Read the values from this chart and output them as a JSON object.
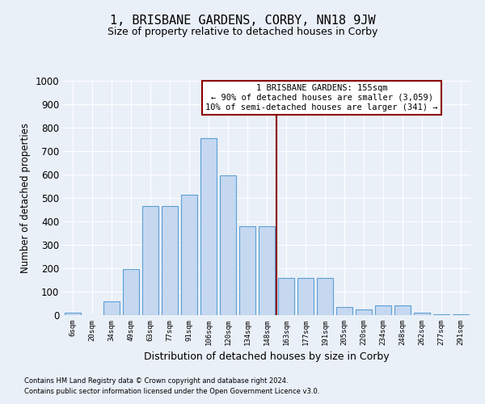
{
  "title": "1, BRISBANE GARDENS, CORBY, NN18 9JW",
  "subtitle": "Size of property relative to detached houses in Corby",
  "xlabel": "Distribution of detached houses by size in Corby",
  "ylabel": "Number of detached properties",
  "footnote1": "Contains HM Land Registry data © Crown copyright and database right 2024.",
  "footnote2": "Contains public sector information licensed under the Open Government Licence v3.0.",
  "categories": [
    "6sqm",
    "20sqm",
    "34sqm",
    "49sqm",
    "63sqm",
    "77sqm",
    "91sqm",
    "106sqm",
    "120sqm",
    "134sqm",
    "148sqm",
    "163sqm",
    "177sqm",
    "191sqm",
    "205sqm",
    "220sqm",
    "234sqm",
    "248sqm",
    "262sqm",
    "277sqm",
    "291sqm"
  ],
  "values": [
    10,
    0,
    60,
    195,
    465,
    465,
    515,
    755,
    595,
    380,
    380,
    160,
    160,
    160,
    35,
    25,
    42,
    42,
    10,
    5,
    3
  ],
  "bar_color": "#c5d8f0",
  "bar_edge_color": "#5a9fd4",
  "vline_color": "#8b0000",
  "annotation_text": "1 BRISBANE GARDENS: 155sqm\n← 90% of detached houses are smaller (3,059)\n10% of semi-detached houses are larger (341) →",
  "annotation_box_color": "#8b0000",
  "ylim": [
    0,
    1000
  ],
  "yticks": [
    0,
    100,
    200,
    300,
    400,
    500,
    600,
    700,
    800,
    900,
    1000
  ],
  "bg_color": "#eaf0f8",
  "plot_bg_color": "#eaf0f8",
  "grid_color": "#ffffff",
  "title_fontsize": 11,
  "subtitle_fontsize": 9
}
